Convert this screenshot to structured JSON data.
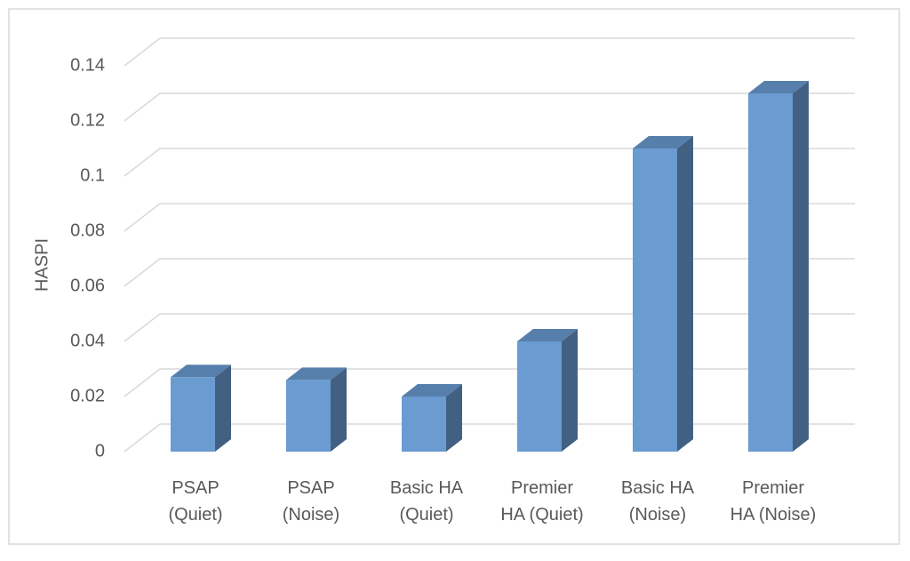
{
  "chart_data": {
    "type": "bar3d",
    "y_label": "HASPI",
    "categories": [
      "PSAP\n(Quiet)",
      "PSAP\n(Noise)",
      "Basic HA\n(Quiet)",
      "Premier\nHA (Quiet)",
      "Basic HA\n(Noise)",
      "Premier\nHA (Noise)"
    ],
    "values": [
      0.027,
      0.026,
      0.02,
      0.04,
      0.11,
      0.13
    ],
    "color": "#6a9bd1",
    "ylim": [
      0,
      0.14
    ],
    "yticks": [
      0,
      0.02,
      0.04,
      0.06,
      0.08,
      0.1,
      0.12,
      0.14
    ],
    "grid": true
  }
}
